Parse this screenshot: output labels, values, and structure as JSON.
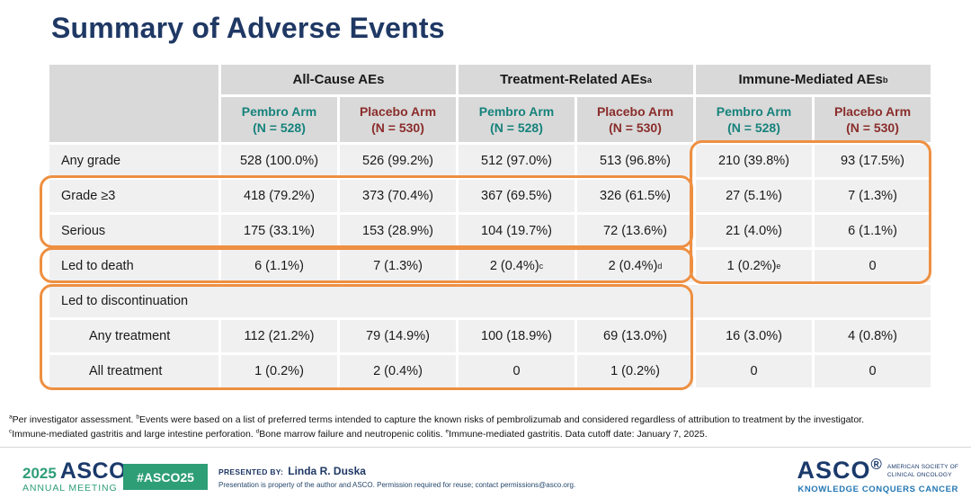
{
  "slide": {
    "title": "Summary of Adverse Events"
  },
  "table": {
    "groups": [
      {
        "label": "All-Cause AEs"
      },
      {
        "label": "Treatment-Related AEs^a"
      },
      {
        "label": "Immune-Mediated AEs^b"
      }
    ],
    "arms": [
      {
        "key": "pembro",
        "label": "Pembro Arm",
        "n": "(N = 528)"
      },
      {
        "key": "placebo",
        "label": "Placebo Arm",
        "n": "(N = 530)"
      }
    ],
    "rows": [
      {
        "label": "Any grade",
        "values": [
          "528 (100.0%)",
          "526 (99.2%)",
          "512 (97.0%)",
          "513 (96.8%)",
          "210 (39.8%)",
          "93 (17.5%)"
        ]
      },
      {
        "label": "Grade ≥3",
        "values": [
          "418 (79.2%)",
          "373 (70.4%)",
          "367 (69.5%)",
          "326 (61.5%)",
          "27 (5.1%)",
          "7 (1.3%)"
        ]
      },
      {
        "label": "Serious",
        "values": [
          "175 (33.1%)",
          "153 (28.9%)",
          "104 (19.7%)",
          "72 (13.6%)",
          "21 (4.0%)",
          "6 (1.1%)"
        ]
      },
      {
        "label": "Led to death",
        "values": [
          "6 (1.1%)",
          "7 (1.3%)",
          "2 (0.4%)^c",
          "2 (0.4%)^d",
          "1 (0.2%)^e",
          "0"
        ]
      },
      {
        "label": "Led to discontinuation",
        "span": true,
        "values": []
      },
      {
        "label": "Any treatment",
        "indent": true,
        "values": [
          "112 (21.2%)",
          "79 (14.9%)",
          "100 (18.9%)",
          "69 (13.0%)",
          "16 (3.0%)",
          "4 (0.8%)"
        ]
      },
      {
        "label": "All treatment",
        "indent": true,
        "values": [
          "1 (0.2%)",
          "2 (0.4%)",
          "0",
          "1 (0.2%)",
          "0",
          "0"
        ]
      }
    ]
  },
  "highlights": [
    {
      "name": "grade3-and-serious-rows"
    },
    {
      "name": "led-to-death-row"
    },
    {
      "name": "immune-mediated-columns"
    },
    {
      "name": "discontinuation-rows"
    }
  ],
  "footnotes": {
    "line1": "^aPer investigator assessment. ^bEvents were based on a list of preferred terms intended to capture the known risks of pembrolizumab and considered regardless of attribution to treatment by the investigator.",
    "line2": "^cImmune-mediated gastritis and large intestine perforation. ^dBone marrow failure and neutropenic colitis. ^eImmune-mediated gastritis.  Data cutoff date: January 7, 2025."
  },
  "footer": {
    "meeting_year": "2025",
    "meeting_org": "ASCO",
    "meeting_name": "ANNUAL MEETING",
    "hashtag": "#ASCO25",
    "presented_by_label": "PRESENTED BY:",
    "presenter": "Linda R. Duska",
    "permission_note": "Presentation is property of the author and ASCO. Permission required for reuse; contact permissions@asco.org.",
    "asco_logo": "ASCO^®",
    "asco_org_line1": "AMERICAN SOCIETY OF",
    "asco_org_line2": "CLINICAL ONCOLOGY",
    "tagline": "KNOWLEDGE CONQUERS CANCER"
  },
  "colors": {
    "title_navy": "#1F3864",
    "teal": "#17827C",
    "dark_red": "#8A2D2B",
    "header_gray": "#D9D9D9",
    "row_gray": "#F0F0F1",
    "highlight_orange": "#EE8F41",
    "footer_green": "#2E9E77",
    "asco_navy": "#1B3A6B",
    "tagline_blue": "#2377B4"
  }
}
